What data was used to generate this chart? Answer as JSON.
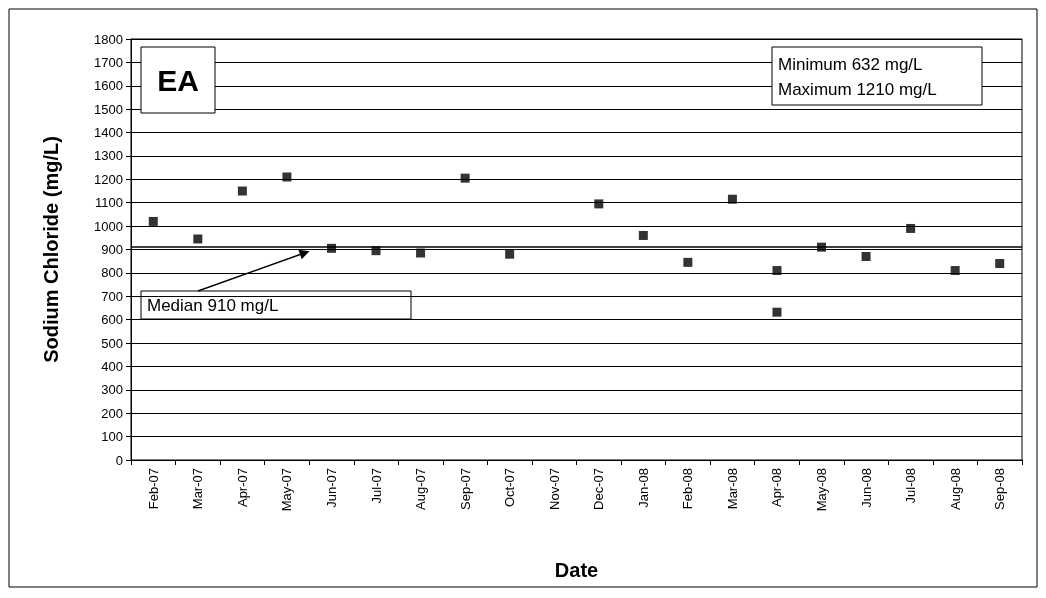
{
  "chart_data": {
    "type": "scatter",
    "xlabel": "Date",
    "ylabel": "Sodium Chloride (mg/L)",
    "categories": [
      "Feb-07",
      "Mar-07",
      "Apr-07",
      "May-07",
      "Jun-07",
      "Jul-07",
      "Aug-07",
      "Sep-07",
      "Oct-07",
      "Nov-07",
      "Dec-07",
      "Jan-08",
      "Feb-08",
      "Mar-08",
      "Apr-08",
      "May-08",
      "Jun-08",
      "Jul-08",
      "Aug-08",
      "Sep-08"
    ],
    "series": [
      {
        "color": "#000000",
        "x": [
          "Feb-07",
          "Mar-07",
          "Apr-07",
          "May-07",
          "Jun-07",
          "Jul-07",
          "Aug-07",
          "Sep-07",
          "Oct-07",
          "Dec-07",
          "Jan-08",
          "Feb-08",
          "Mar-08",
          "Apr-08",
          "Apr-08",
          "May-08",
          "Jun-08",
          "Jul-08",
          "Aug-08",
          "Sep-08"
        ],
        "values": [
          1020,
          945,
          1150,
          1210,
          905,
          895,
          885,
          1205,
          880,
          1095,
          960,
          845,
          1115,
          810,
          632,
          910,
          870,
          990,
          810,
          840
        ]
      }
    ],
    "ylim": [
      0,
      1800
    ],
    "yticks": [
      0,
      100,
      200,
      300,
      400,
      500,
      600,
      700,
      800,
      900,
      1000,
      1100,
      1200,
      1300,
      1400,
      1500,
      1600,
      1700,
      1800
    ],
    "grid": "y",
    "marker": "square",
    "ref_lines": [
      {
        "axis": "y",
        "value": 910,
        "label": "Median 910 mg/L",
        "color": "#000000"
      }
    ],
    "annotations": [
      "EA",
      "Minimum 632 mg/L",
      "Maximum 1210 mg/L"
    ]
  }
}
